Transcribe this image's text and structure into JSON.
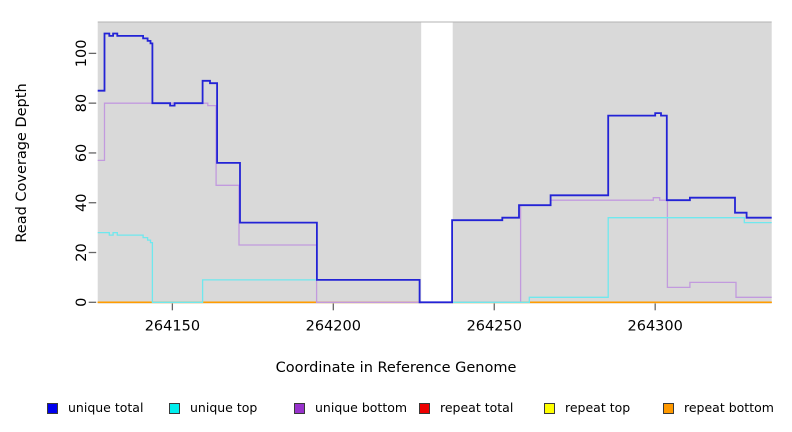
{
  "chart_data": {
    "type": "line",
    "step": true,
    "title": "",
    "xlabel": "Coordinate in Reference Genome",
    "ylabel": "Read Coverage Depth",
    "xlim": [
      264126.8,
      264336.2
    ],
    "ylim": [
      0,
      112.4
    ],
    "x_ticks": [
      264150,
      264200,
      264250,
      264300
    ],
    "x_tick_labels": [
      "264150",
      "264200",
      "264250",
      "264300"
    ],
    "y_ticks": [
      0,
      20,
      40,
      60,
      80,
      100
    ],
    "y_tick_labels": [
      "0",
      "20",
      "40",
      "60",
      "80",
      "100"
    ],
    "grid": false,
    "panel_color": "#d9d9d9",
    "panel_border_color": "#b3b3b3",
    "gap_x": [
      264227.3,
      264237.1
    ],
    "legend_position": "bottom",
    "legend": [
      {
        "label": "unique total",
        "color": "#0000ee"
      },
      {
        "label": "unique top",
        "color": "#00eeee"
      },
      {
        "label": "unique bottom",
        "color": "#9832cc"
      },
      {
        "label": "repeat total",
        "color": "#ee0000"
      },
      {
        "label": "repeat top",
        "color": "#ffff00"
      },
      {
        "label": "repeat bottom",
        "color": "#ff9900"
      }
    ],
    "series": [
      {
        "name": "repeat total",
        "color": "#e80000",
        "width": 1.2,
        "points": [
          [
            264126.8,
            0
          ],
          [
            264336.2,
            0
          ]
        ]
      },
      {
        "name": "repeat top",
        "color": "#ffff00",
        "width": 1.2,
        "points": [
          [
            264126.8,
            0
          ],
          [
            264336.2,
            0
          ]
        ]
      },
      {
        "name": "repeat bottom",
        "color": "#ff9c00",
        "width": 1.6,
        "points": [
          [
            264126.8,
            0
          ],
          [
            264336.2,
            0
          ]
        ]
      },
      {
        "name": "unique bottom",
        "color": "#c29ade",
        "width": 1.3,
        "points": [
          [
            264126.8,
            57
          ],
          [
            264128.9,
            80
          ],
          [
            264161.0,
            79
          ],
          [
            264163.6,
            47
          ],
          [
            264170.7,
            23
          ],
          [
            264194.8,
            0
          ],
          [
            264258.2,
            39
          ],
          [
            264267.5,
            41
          ],
          [
            264299.4,
            42
          ],
          [
            264301.4,
            41
          ],
          [
            264303.8,
            6
          ],
          [
            264310.8,
            8
          ],
          [
            264325.1,
            2
          ],
          [
            264336.2,
            2
          ]
        ]
      },
      {
        "name": "unique top",
        "color": "#6fe8ee",
        "width": 1.3,
        "points": [
          [
            264126.8,
            28
          ],
          [
            264130.4,
            27
          ],
          [
            264131.6,
            28
          ],
          [
            264132.9,
            27
          ],
          [
            264140.9,
            26
          ],
          [
            264142.3,
            25
          ],
          [
            264143.2,
            24
          ],
          [
            264143.8,
            0
          ],
          [
            264159.4,
            9
          ],
          [
            264226.8,
            0
          ],
          [
            264260.9,
            2
          ],
          [
            264285.4,
            34
          ],
          [
            264327.7,
            32
          ],
          [
            264336.2,
            32
          ]
        ]
      },
      {
        "name": "unique total",
        "color": "#2323d6",
        "width": 1.8,
        "points": [
          [
            264126.8,
            85
          ],
          [
            264128.9,
            108
          ],
          [
            264130.4,
            107
          ],
          [
            264131.6,
            108
          ],
          [
            264132.9,
            107
          ],
          [
            264140.9,
            106
          ],
          [
            264142.3,
            105
          ],
          [
            264143.2,
            104
          ],
          [
            264143.8,
            80
          ],
          [
            264149.3,
            79
          ],
          [
            264150.7,
            80
          ],
          [
            264159.4,
            89
          ],
          [
            264161.7,
            88
          ],
          [
            264163.9,
            56
          ],
          [
            264171.0,
            32
          ],
          [
            264194.9,
            9
          ],
          [
            264226.8,
            0
          ],
          [
            264236.9,
            33
          ],
          [
            264252.5,
            34
          ],
          [
            264257.7,
            39
          ],
          [
            264267.5,
            43
          ],
          [
            264285.4,
            75
          ],
          [
            264300.0,
            76
          ],
          [
            264301.8,
            75
          ],
          [
            264303.6,
            41
          ],
          [
            264310.8,
            42
          ],
          [
            264324.8,
            36
          ],
          [
            264328.4,
            34
          ],
          [
            264336.2,
            34
          ]
        ]
      }
    ]
  }
}
